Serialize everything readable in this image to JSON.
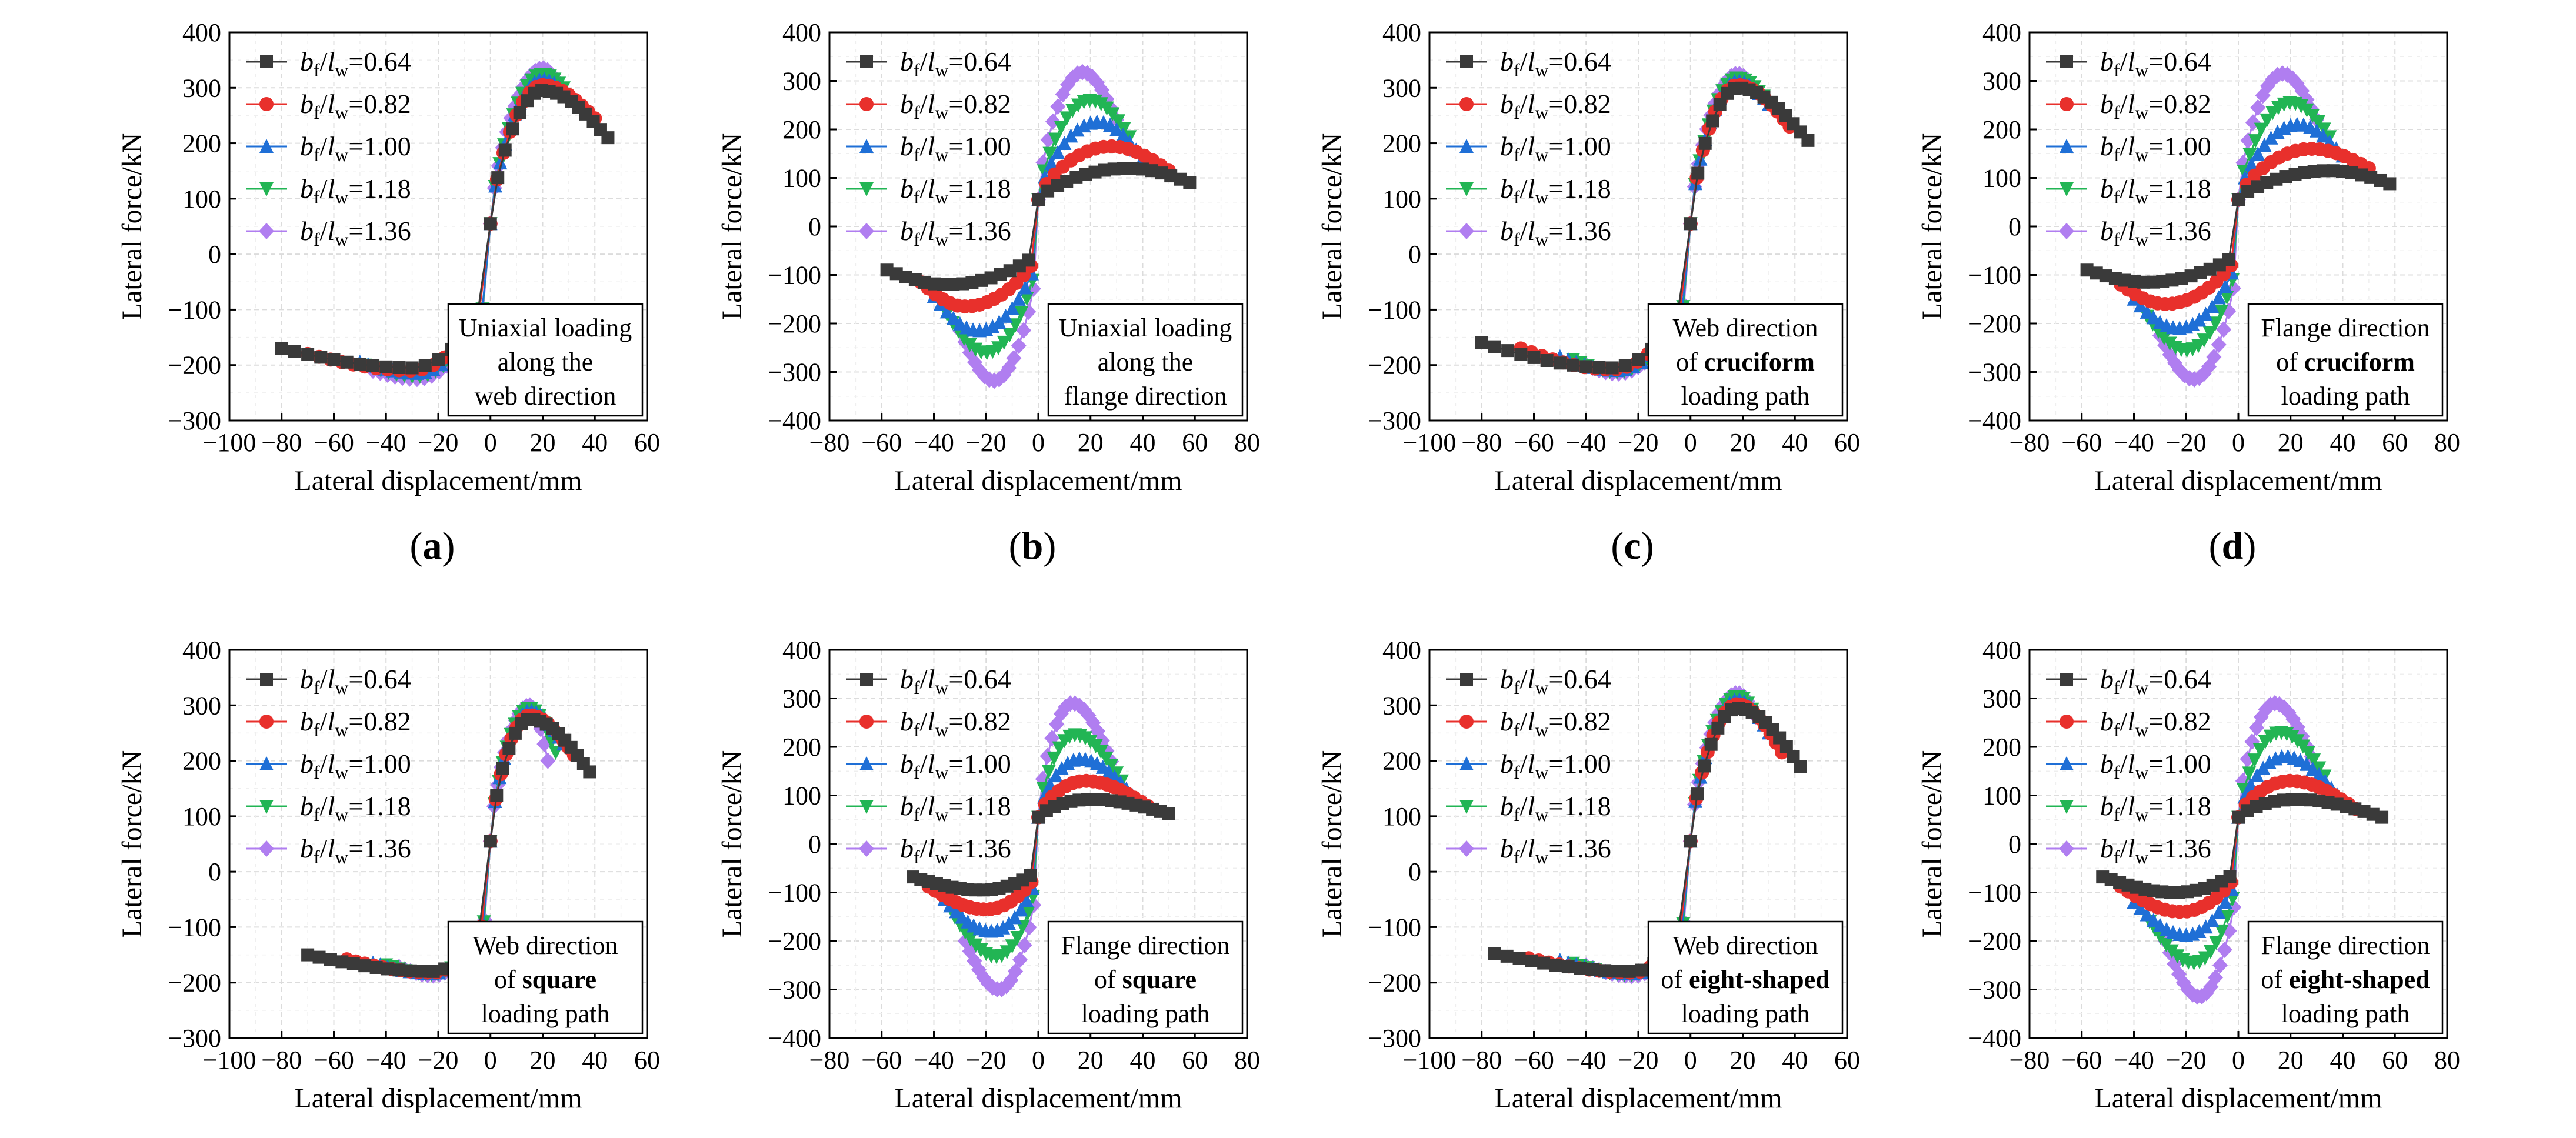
{
  "figure": {
    "panel_label_open": "(",
    "panel_label_close": ")",
    "legend_labels": [
      "bf/lw=0.64",
      "bf/lw=0.82",
      "bf/lw=1.00",
      "bf/lw=1.18",
      "bf/lw=1.36"
    ]
  },
  "series_style": [
    {
      "name": "bf/lw=0.64",
      "color": "#3a3a3a",
      "marker": "square"
    },
    {
      "name": "bf/lw=0.82",
      "color": "#e8302c",
      "marker": "circle"
    },
    {
      "name": "bf/lw=1.00",
      "color": "#1f6fd6",
      "marker": "triangle-up"
    },
    {
      "name": "bf/lw=1.18",
      "color": "#22b554",
      "marker": "triangle-down"
    },
    {
      "name": "bf/lw=1.36",
      "color": "#b07ef0",
      "marker": "diamond"
    }
  ],
  "chart_data": [
    {
      "id": "a",
      "type": "line",
      "xlabel": "Lateral displacement/mm",
      "ylabel": "Lateral force/kN",
      "xlim": [
        -100,
        60
      ],
      "ylim": [
        -300,
        400
      ],
      "xticks": [
        -100,
        -80,
        -60,
        -40,
        -20,
        0,
        20,
        40,
        60
      ],
      "yticks": [
        -300,
        -200,
        -100,
        0,
        100,
        200,
        300,
        400
      ],
      "annotation": [
        [
          "Uniaxial loading",
          false
        ],
        [
          "along the",
          false
        ],
        [
          "web direction",
          false
        ]
      ],
      "series": [
        {
          "name": "bf/lw=0.64",
          "peak_pos": 295,
          "peak_neg": -205,
          "x_pos": 20,
          "x_neg": -30,
          "min": -80,
          "max": 45,
          "end_pos": 210,
          "end_neg": -170
        },
        {
          "name": "bf/lw=0.82",
          "peak_pos": 305,
          "peak_neg": -210,
          "x_pos": 20,
          "x_neg": -30,
          "min": -70,
          "max": 40,
          "end_pos": 245,
          "end_neg": -180
        },
        {
          "name": "bf/lw=1.00",
          "peak_pos": 315,
          "peak_neg": -215,
          "x_pos": 20,
          "x_neg": -28,
          "min": -50,
          "max": 30,
          "end_pos": 285,
          "end_neg": -195
        },
        {
          "name": "bf/lw=1.18",
          "peak_pos": 325,
          "peak_neg": -220,
          "x_pos": 20,
          "x_neg": -28,
          "min": -48,
          "max": 28,
          "end_pos": 300,
          "end_neg": -200
        },
        {
          "name": "bf/lw=1.36",
          "peak_pos": 335,
          "peak_neg": -225,
          "x_pos": 20,
          "x_neg": -28,
          "min": -45,
          "max": 25,
          "end_pos": 315,
          "end_neg": -210
        }
      ]
    },
    {
      "id": "b",
      "type": "line",
      "xlabel": "Lateral displacement/mm",
      "ylabel": "Lateral force/kN",
      "xlim": [
        -80,
        80
      ],
      "ylim": [
        -400,
        400
      ],
      "xticks": [
        -80,
        -60,
        -40,
        -20,
        0,
        20,
        40,
        60,
        80
      ],
      "yticks": [
        -400,
        -300,
        -200,
        -100,
        0,
        100,
        200,
        300,
        400
      ],
      "annotation": [
        [
          "Uniaxial loading",
          false
        ],
        [
          "along the",
          false
        ],
        [
          "flange direction",
          false
        ]
      ],
      "series": [
        {
          "name": "bf/lw=0.64",
          "peak_pos": 120,
          "peak_neg": -120,
          "x_pos": 35,
          "x_neg": -35,
          "min": -58,
          "max": 58,
          "end_pos": 90,
          "end_neg": -90
        },
        {
          "name": "bf/lw=0.82",
          "peak_pos": 165,
          "peak_neg": -165,
          "x_pos": 28,
          "x_neg": -28,
          "min": -45,
          "max": 50,
          "end_pos": 115,
          "end_neg": -115
        },
        {
          "name": "bf/lw=1.00",
          "peak_pos": 215,
          "peak_neg": -215,
          "x_pos": 23,
          "x_neg": -23,
          "min": -40,
          "max": 40,
          "end_pos": 140,
          "end_neg": -145
        },
        {
          "name": "bf/lw=1.18",
          "peak_pos": 260,
          "peak_neg": -260,
          "x_pos": 20,
          "x_neg": -20,
          "min": -35,
          "max": 35,
          "end_pos": 185,
          "end_neg": -180
        },
        {
          "name": "bf/lw=1.36",
          "peak_pos": 318,
          "peak_neg": -318,
          "x_pos": 17,
          "x_neg": -17,
          "min": -30,
          "max": 30,
          "end_pos": 220,
          "end_neg": -215
        }
      ]
    },
    {
      "id": "c",
      "type": "line",
      "xlabel": "Lateral displacement/mm",
      "ylabel": "Lateral force/kN",
      "xlim": [
        -100,
        60
      ],
      "ylim": [
        -300,
        400
      ],
      "xticks": [
        -100,
        -80,
        -60,
        -40,
        -20,
        0,
        20,
        40,
        60
      ],
      "yticks": [
        -300,
        -200,
        -100,
        0,
        100,
        200,
        300,
        400
      ],
      "annotation": [
        [
          "Web direction",
          false
        ],
        [
          "of |cruciform",
          true
        ],
        [
          "loading path",
          false
        ]
      ],
      "series": [
        {
          "name": "bf/lw=0.64",
          "peak_pos": 300,
          "peak_neg": -205,
          "x_pos": 18,
          "x_neg": -30,
          "min": -80,
          "max": 45,
          "end_pos": 205,
          "end_neg": -160
        },
        {
          "name": "bf/lw=0.82",
          "peak_pos": 305,
          "peak_neg": -208,
          "x_pos": 18,
          "x_neg": -30,
          "min": -65,
          "max": 38,
          "end_pos": 230,
          "end_neg": -170
        },
        {
          "name": "bf/lw=1.00",
          "peak_pos": 312,
          "peak_neg": -210,
          "x_pos": 18,
          "x_neg": -28,
          "min": -50,
          "max": 30,
          "end_pos": 270,
          "end_neg": -185
        },
        {
          "name": "bf/lw=1.18",
          "peak_pos": 318,
          "peak_neg": -212,
          "x_pos": 18,
          "x_neg": -28,
          "min": -45,
          "max": 28,
          "end_pos": 285,
          "end_neg": -190
        },
        {
          "name": "bf/lw=1.36",
          "peak_pos": 325,
          "peak_neg": -215,
          "x_pos": 18,
          "x_neg": -28,
          "min": -40,
          "max": 25,
          "end_pos": 295,
          "end_neg": -200
        }
      ]
    },
    {
      "id": "d",
      "type": "line",
      "xlabel": "Lateral displacement/mm",
      "ylabel": "Lateral force/kN",
      "xlim": [
        -80,
        80
      ],
      "ylim": [
        -400,
        400
      ],
      "xticks": [
        -80,
        -60,
        -40,
        -20,
        0,
        20,
        40,
        60,
        80
      ],
      "yticks": [
        -400,
        -300,
        -200,
        -100,
        0,
        100,
        200,
        300,
        400
      ],
      "annotation": [
        [
          "Flange direction",
          false
        ],
        [
          "of |cruciform",
          true
        ],
        [
          "loading path",
          false
        ]
      ],
      "series": [
        {
          "name": "bf/lw=0.64",
          "peak_pos": 115,
          "peak_neg": -115,
          "x_pos": 35,
          "x_neg": -35,
          "min": -58,
          "max": 58,
          "end_pos": 88,
          "end_neg": -90
        },
        {
          "name": "bf/lw=0.82",
          "peak_pos": 160,
          "peak_neg": -160,
          "x_pos": 28,
          "x_neg": -28,
          "min": -45,
          "max": 50,
          "end_pos": 120,
          "end_neg": -120
        },
        {
          "name": "bf/lw=1.00",
          "peak_pos": 210,
          "peak_neg": -210,
          "x_pos": 23,
          "x_neg": -23,
          "min": -40,
          "max": 40,
          "end_pos": 145,
          "end_neg": -150
        },
        {
          "name": "bf/lw=1.18",
          "peak_pos": 255,
          "peak_neg": -255,
          "x_pos": 20,
          "x_neg": -20,
          "min": -35,
          "max": 35,
          "end_pos": 185,
          "end_neg": -185
        },
        {
          "name": "bf/lw=1.36",
          "peak_pos": 315,
          "peak_neg": -315,
          "x_pos": 17,
          "x_neg": -17,
          "min": -30,
          "max": 30,
          "end_pos": 220,
          "end_neg": -225
        }
      ]
    },
    {
      "id": "e",
      "type": "line",
      "xlabel": "Lateral displacement/mm",
      "ylabel": "Lateral force/kN",
      "xlim": [
        -100,
        60
      ],
      "ylim": [
        -300,
        400
      ],
      "xticks": [
        -100,
        -80,
        -60,
        -40,
        -20,
        0,
        20,
        40,
        60
      ],
      "yticks": [
        -300,
        -200,
        -100,
        0,
        100,
        200,
        300,
        400
      ],
      "annotation": [
        [
          "Web direction",
          false
        ],
        [
          "of |square",
          true
        ],
        [
          "loading path",
          false
        ]
      ],
      "series": [
        {
          "name": "bf/lw=0.64",
          "peak_pos": 275,
          "peak_neg": -180,
          "x_pos": 15,
          "x_neg": -22,
          "min": -70,
          "max": 38,
          "end_pos": 180,
          "end_neg": -150
        },
        {
          "name": "bf/lw=0.82",
          "peak_pos": 282,
          "peak_neg": -182,
          "x_pos": 15,
          "x_neg": -22,
          "min": -55,
          "max": 32,
          "end_pos": 210,
          "end_neg": -158
        },
        {
          "name": "bf/lw=1.00",
          "peak_pos": 290,
          "peak_neg": -184,
          "x_pos": 15,
          "x_neg": -22,
          "min": -45,
          "max": 28,
          "end_pos": 230,
          "end_neg": -165
        },
        {
          "name": "bf/lw=1.18",
          "peak_pos": 295,
          "peak_neg": -185,
          "x_pos": 15,
          "x_neg": -22,
          "min": -40,
          "max": 25,
          "end_pos": 215,
          "end_neg": -168
        },
        {
          "name": "bf/lw=1.36",
          "peak_pos": 300,
          "peak_neg": -187,
          "x_pos": 15,
          "x_neg": -22,
          "min": -35,
          "max": 22,
          "end_pos": 200,
          "end_neg": -172
        }
      ]
    },
    {
      "id": "f",
      "type": "line",
      "xlabel": "Lateral displacement/mm",
      "ylabel": "Lateral force/kN",
      "xlim": [
        -80,
        80
      ],
      "ylim": [
        -400,
        400
      ],
      "xticks": [
        -80,
        -60,
        -40,
        -20,
        0,
        20,
        40,
        60,
        80
      ],
      "yticks": [
        -400,
        -300,
        -200,
        -100,
        0,
        100,
        200,
        300,
        400
      ],
      "annotation": [
        [
          "Flange direction",
          false
        ],
        [
          "of |square",
          true
        ],
        [
          "loading path",
          false
        ]
      ],
      "series": [
        {
          "name": "bf/lw=0.64",
          "peak_pos": 92,
          "peak_neg": -95,
          "x_pos": 20,
          "x_neg": -22,
          "min": -48,
          "max": 50,
          "end_pos": 62,
          "end_neg": -68
        },
        {
          "name": "bf/lw=0.82",
          "peak_pos": 130,
          "peak_neg": -135,
          "x_pos": 18,
          "x_neg": -20,
          "min": -42,
          "max": 42,
          "end_pos": 78,
          "end_neg": -88
        },
        {
          "name": "bf/lw=1.00",
          "peak_pos": 175,
          "peak_neg": -180,
          "x_pos": 16,
          "x_neg": -18,
          "min": -36,
          "max": 36,
          "end_pos": 100,
          "end_neg": -115
        },
        {
          "name": "bf/lw=1.18",
          "peak_pos": 225,
          "peak_neg": -232,
          "x_pos": 14,
          "x_neg": -16,
          "min": -32,
          "max": 32,
          "end_pos": 130,
          "end_neg": -150
        },
        {
          "name": "bf/lw=1.36",
          "peak_pos": 290,
          "peak_neg": -300,
          "x_pos": 13,
          "x_neg": -15,
          "min": -28,
          "max": 28,
          "end_pos": 170,
          "end_neg": -200
        }
      ]
    },
    {
      "id": "g",
      "type": "line",
      "xlabel": "Lateral displacement/mm",
      "ylabel": "Lateral force/kN",
      "xlim": [
        -100,
        60
      ],
      "ylim": [
        -300,
        400
      ],
      "xticks": [
        -100,
        -80,
        -60,
        -40,
        -20,
        0,
        20,
        40,
        60
      ],
      "yticks": [
        -300,
        -200,
        -100,
        0,
        100,
        200,
        300,
        400
      ],
      "annotation": [
        [
          "Web direction",
          false
        ],
        [
          "of |eight-shaped",
          true
        ],
        [
          "loading path",
          false
        ]
      ],
      "series": [
        {
          "name": "bf/lw=0.64",
          "peak_pos": 295,
          "peak_neg": -180,
          "x_pos": 18,
          "x_neg": -22,
          "min": -75,
          "max": 42,
          "end_pos": 190,
          "end_neg": -148
        },
        {
          "name": "bf/lw=0.82",
          "peak_pos": 302,
          "peak_neg": -182,
          "x_pos": 18,
          "x_neg": -22,
          "min": -62,
          "max": 35,
          "end_pos": 215,
          "end_neg": -156
        },
        {
          "name": "bf/lw=1.00",
          "peak_pos": 310,
          "peak_neg": -184,
          "x_pos": 18,
          "x_neg": -22,
          "min": -50,
          "max": 30,
          "end_pos": 250,
          "end_neg": -160
        },
        {
          "name": "bf/lw=1.18",
          "peak_pos": 316,
          "peak_neg": -186,
          "x_pos": 18,
          "x_neg": -22,
          "min": -45,
          "max": 27,
          "end_pos": 265,
          "end_neg": -165
        },
        {
          "name": "bf/lw=1.36",
          "peak_pos": 322,
          "peak_neg": -188,
          "x_pos": 18,
          "x_neg": -22,
          "min": -40,
          "max": 25,
          "end_pos": 280,
          "end_neg": -170
        }
      ]
    },
    {
      "id": "h",
      "type": "line",
      "xlabel": "Lateral displacement/mm",
      "ylabel": "Lateral force/kN",
      "xlim": [
        -80,
        80
      ],
      "ylim": [
        -400,
        400
      ],
      "xticks": [
        -80,
        -60,
        -40,
        -20,
        0,
        20,
        40,
        60,
        80
      ],
      "yticks": [
        -400,
        -300,
        -200,
        -100,
        0,
        100,
        200,
        300,
        400
      ],
      "annotation": [
        [
          "Flange direction",
          false
        ],
        [
          "of |eight-shaped",
          true
        ],
        [
          "loading path",
          false
        ]
      ],
      "series": [
        {
          "name": "bf/lw=0.64",
          "peak_pos": 92,
          "peak_neg": -100,
          "x_pos": 22,
          "x_neg": -24,
          "min": -52,
          "max": 55,
          "end_pos": 55,
          "end_neg": -68
        },
        {
          "name": "bf/lw=0.82",
          "peak_pos": 130,
          "peak_neg": -140,
          "x_pos": 20,
          "x_neg": -22,
          "min": -45,
          "max": 45,
          "end_pos": 72,
          "end_neg": -88
        },
        {
          "name": "bf/lw=1.00",
          "peak_pos": 180,
          "peak_neg": -188,
          "x_pos": 18,
          "x_neg": -20,
          "min": -40,
          "max": 38,
          "end_pos": 100,
          "end_neg": -120
        },
        {
          "name": "bf/lw=1.18",
          "peak_pos": 230,
          "peak_neg": -245,
          "x_pos": 16,
          "x_neg": -17,
          "min": -34,
          "max": 33,
          "end_pos": 140,
          "end_neg": -160
        },
        {
          "name": "bf/lw=1.36",
          "peak_pos": 290,
          "peak_neg": -315,
          "x_pos": 14,
          "x_neg": -15,
          "min": -28,
          "max": 28,
          "end_pos": 180,
          "end_neg": -200
        }
      ]
    }
  ]
}
